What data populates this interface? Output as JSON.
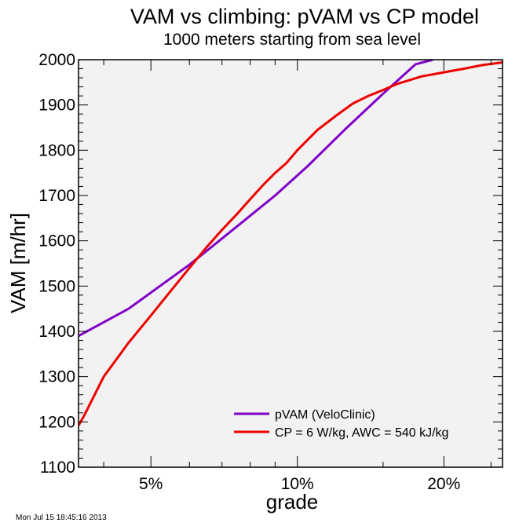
{
  "chart_data": {
    "type": "line",
    "title": "VAM vs climbing: pVAM vs CP model",
    "subtitle": "1000 meters starting from sea level",
    "xlabel": "grade",
    "ylabel": "VAM [m/hr]",
    "x_scale": "log",
    "xlim": [
      0.0355,
      0.264
    ],
    "ylim": [
      1100,
      2000
    ],
    "y_ticks": [
      1100,
      1200,
      1300,
      1400,
      1500,
      1600,
      1700,
      1800,
      1900,
      2000
    ],
    "y_tick_labels": [
      "1100",
      "1200",
      "1300",
      "1400",
      "1500",
      "1600",
      "1700",
      "1800",
      "1900",
      "2000"
    ],
    "x_major_ticks": [
      0.05,
      0.1,
      0.2
    ],
    "x_tick_labels": [
      "5%",
      "10%",
      "20%"
    ],
    "x_minor_ticks": [
      0.04,
      0.06,
      0.07,
      0.08,
      0.09,
      0.15,
      0.25
    ],
    "legend_position": "bottom-right",
    "series": [
      {
        "name": "pVAM (VeloClinic)",
        "color": "#8000c8",
        "x": [
          0.0355,
          0.045,
          0.06,
          0.075,
          0.09,
          0.105,
          0.125,
          0.15,
          0.175,
          0.19
        ],
        "y": [
          1390,
          1450,
          1547,
          1631,
          1700,
          1765,
          1845,
          1925,
          1990,
          2000
        ]
      },
      {
        "name": "CP = 6 W/kg, AWC = 540 kJ/kg",
        "color": "#ee0000",
        "x": [
          0.0355,
          0.0365,
          0.04,
          0.045,
          0.05,
          0.055,
          0.06,
          0.065,
          0.07,
          0.075,
          0.08,
          0.085,
          0.09,
          0.095,
          0.1,
          0.11,
          0.12,
          0.13,
          0.14,
          0.15,
          0.16,
          0.18,
          0.2,
          0.22,
          0.24,
          0.264
        ],
        "y": [
          1192,
          1215,
          1300,
          1375,
          1435,
          1490,
          1540,
          1585,
          1624,
          1658,
          1692,
          1723,
          1750,
          1772,
          1800,
          1845,
          1876,
          1903,
          1920,
          1933,
          1946,
          1963,
          1972,
          1980,
          1988,
          1994
        ]
      }
    ],
    "timestamp": "Mon Jul 15 18:45:16 2013"
  }
}
